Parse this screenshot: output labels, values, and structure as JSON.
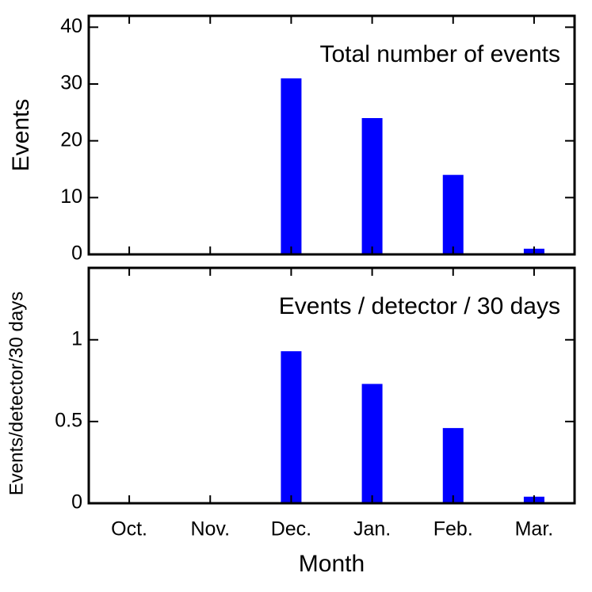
{
  "chart_data": [
    {
      "type": "bar",
      "title": "Total number of events",
      "y_label": "Events",
      "values": [
        0,
        0,
        31,
        24,
        14,
        1
      ],
      "color": "#0000ff",
      "ylim": [
        0,
        42
      ],
      "yticks": [
        0,
        10,
        20,
        30,
        40
      ]
    },
    {
      "type": "bar",
      "title": "Events / detector / 30 days",
      "y_label": "Events/detector/30 days",
      "x_label": "Month",
      "categories": [
        "Oct.",
        "Nov.",
        "Dec.",
        "Jan.",
        "Feb.",
        "Mar."
      ],
      "values": [
        0,
        0,
        0.93,
        0.73,
        0.46,
        0.04
      ],
      "color": "#0000ff",
      "ylim": [
        0,
        1.44
      ],
      "yticks": [
        0,
        0.5,
        1
      ]
    }
  ]
}
